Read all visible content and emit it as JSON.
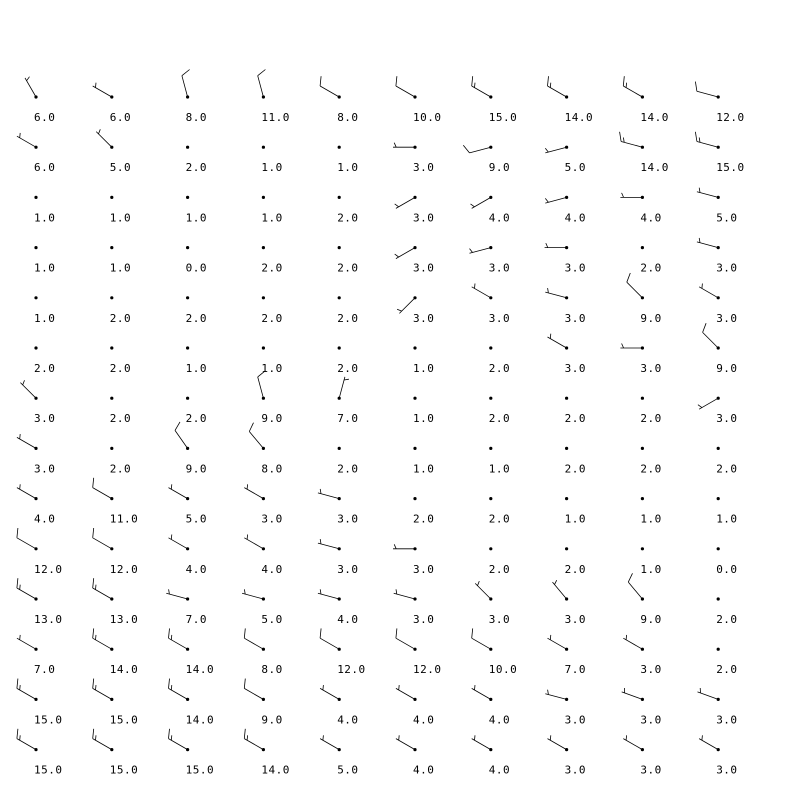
{
  "chart_data": {
    "type": "station-plot",
    "title": "",
    "xlabel": "",
    "ylabel": "",
    "units": "knots",
    "grid": false,
    "rows": 14,
    "cols": 10,
    "speeds": [
      [
        6,
        6,
        8,
        11,
        8,
        10,
        15,
        14,
        14,
        12
      ],
      [
        6,
        5,
        2,
        1,
        1,
        3,
        9,
        5,
        14,
        15
      ],
      [
        1,
        1,
        1,
        1,
        2,
        3,
        4,
        4,
        4,
        5
      ],
      [
        1,
        1,
        0,
        2,
        2,
        3,
        3,
        3,
        2,
        3
      ],
      [
        1,
        2,
        2,
        2,
        2,
        3,
        3,
        3,
        9,
        3
      ],
      [
        2,
        2,
        1,
        1,
        2,
        1,
        2,
        3,
        3,
        9
      ],
      [
        3,
        2,
        2,
        9,
        7,
        1,
        2,
        2,
        2,
        3
      ],
      [
        3,
        2,
        9,
        8,
        2,
        1,
        1,
        2,
        2,
        2
      ],
      [
        4,
        11,
        5,
        3,
        3,
        2,
        2,
        1,
        1,
        1
      ],
      [
        12,
        12,
        4,
        4,
        3,
        3,
        2,
        2,
        1,
        0
      ],
      [
        13,
        13,
        7,
        5,
        4,
        3,
        3,
        3,
        9,
        2
      ],
      [
        7,
        14,
        14,
        8,
        12,
        12,
        10,
        7,
        3,
        2
      ],
      [
        15,
        15,
        14,
        9,
        4,
        4,
        4,
        3,
        3,
        3
      ],
      [
        15,
        15,
        15,
        14,
        5,
        4,
        4,
        3,
        3,
        3
      ]
    ],
    "labels": [
      [
        "6.0",
        "6.0",
        "8.0",
        "11.0",
        "8.0",
        "10.0",
        "15.0",
        "14.0",
        "14.0",
        "12.0"
      ],
      [
        "6.0",
        "5.0",
        "2.0",
        "1.0",
        "1.0",
        "3.0",
        "9.0",
        "5.0",
        "14.0",
        "15.0"
      ],
      [
        "1.0",
        "1.0",
        "1.0",
        "1.0",
        "2.0",
        "3.0",
        "4.0",
        "4.0",
        "4.0",
        "5.0"
      ],
      [
        "1.0",
        "1.0",
        "0.0",
        "2.0",
        "2.0",
        "3.0",
        "3.0",
        "3.0",
        "2.0",
        "3.0"
      ],
      [
        "1.0",
        "2.0",
        "2.0",
        "2.0",
        "2.0",
        "3.0",
        "3.0",
        "3.0",
        "9.0",
        "3.0"
      ],
      [
        "2.0",
        "2.0",
        "1.0",
        "1.0",
        "2.0",
        "1.0",
        "2.0",
        "3.0",
        "3.0",
        "9.0"
      ],
      [
        "3.0",
        "2.0",
        "2.0",
        "9.0",
        "7.0",
        "1.0",
        "2.0",
        "2.0",
        "2.0",
        "3.0"
      ],
      [
        "3.0",
        "2.0",
        "9.0",
        "8.0",
        "2.0",
        "1.0",
        "1.0",
        "2.0",
        "2.0",
        "2.0"
      ],
      [
        "4.0",
        "11.0",
        "5.0",
        "3.0",
        "3.0",
        "2.0",
        "2.0",
        "1.0",
        "1.0",
        "1.0"
      ],
      [
        "12.0",
        "12.0",
        "4.0",
        "4.0",
        "3.0",
        "3.0",
        "2.0",
        "2.0",
        "1.0",
        "0.0"
      ],
      [
        "13.0",
        "13.0",
        "7.0",
        "5.0",
        "4.0",
        "3.0",
        "3.0",
        "3.0",
        "9.0",
        "2.0"
      ],
      [
        "7.0",
        "14.0",
        "14.0",
        "8.0",
        "12.0",
        "12.0",
        "10.0",
        "7.0",
        "3.0",
        "2.0"
      ],
      [
        "15.0",
        "15.0",
        "14.0",
        "9.0",
        "4.0",
        "4.0",
        "4.0",
        "3.0",
        "3.0",
        "3.0"
      ],
      [
        "15.0",
        "15.0",
        "15.0",
        "14.0",
        "5.0",
        "4.0",
        "4.0",
        "3.0",
        "3.0",
        "3.0"
      ]
    ],
    "directions_deg": [
      [
        330,
        300,
        345,
        345,
        300,
        300,
        300,
        300,
        300,
        285
      ],
      [
        300,
        315,
        300,
        300,
        300,
        270,
        255,
        255,
        285,
        285
      ],
      [
        300,
        300,
        300,
        300,
        300,
        240,
        240,
        255,
        270,
        285
      ],
      [
        300,
        300,
        300,
        300,
        300,
        240,
        255,
        270,
        300,
        285
      ],
      [
        300,
        300,
        300,
        300,
        300,
        225,
        300,
        285,
        315,
        300
      ],
      [
        300,
        300,
        300,
        300,
        300,
        300,
        300,
        300,
        270,
        315
      ],
      [
        315,
        300,
        300,
        345,
        15,
        300,
        300,
        300,
        300,
        240
      ],
      [
        300,
        300,
        325,
        320,
        300,
        300,
        300,
        300,
        300,
        300
      ],
      [
        300,
        300,
        300,
        300,
        285,
        270,
        300,
        300,
        300,
        300
      ],
      [
        300,
        300,
        300,
        300,
        285,
        270,
        300,
        300,
        300,
        300
      ],
      [
        300,
        300,
        285,
        285,
        285,
        285,
        315,
        320,
        320,
        300
      ],
      [
        300,
        300,
        300,
        300,
        300,
        300,
        300,
        300,
        300,
        300
      ],
      [
        300,
        300,
        300,
        300,
        300,
        300,
        300,
        285,
        290,
        290
      ],
      [
        300,
        300,
        300,
        300,
        300,
        300,
        300,
        300,
        300,
        300
      ]
    ]
  }
}
